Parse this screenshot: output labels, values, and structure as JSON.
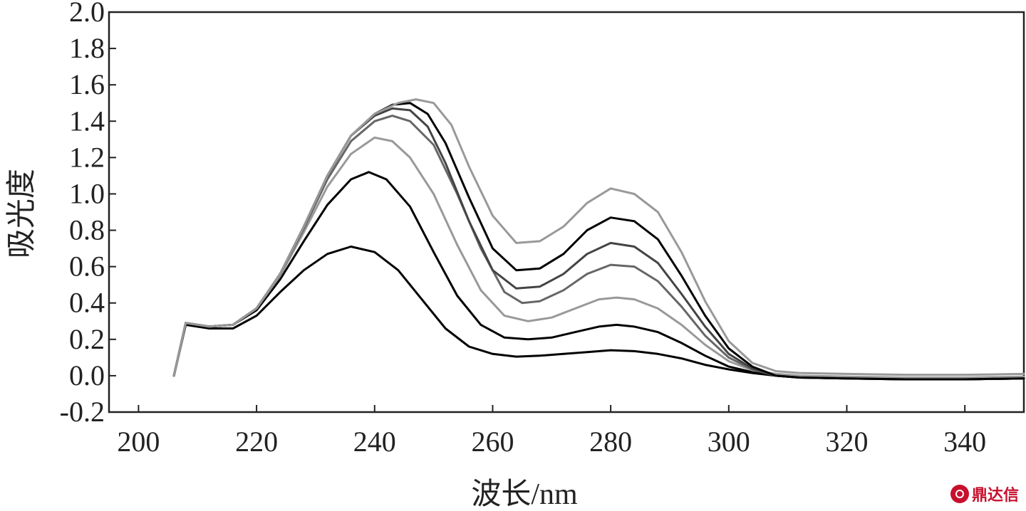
{
  "chart_data": {
    "type": "line",
    "xlabel": "波长/nm",
    "ylabel": "吸光度",
    "xlim": [
      195,
      350
    ],
    "ylim": [
      -0.2,
      2.0
    ],
    "xticks": [
      200,
      220,
      240,
      260,
      280,
      300,
      320,
      340
    ],
    "yticks": [
      -0.2,
      0.0,
      0.2,
      0.4,
      0.6,
      0.8,
      1.0,
      1.2,
      1.4,
      1.6,
      1.8,
      2.0
    ],
    "ytick_labels": [
      "-0.2",
      "0.0",
      "0.2",
      "0.4",
      "0.6",
      "0.8",
      "1.0",
      "1.2",
      "1.4",
      "1.6",
      "1.8",
      "2.0"
    ],
    "grid": false,
    "series": [
      {
        "color": "#000000",
        "points": [
          [
            206,
            0.0
          ],
          [
            208,
            0.28
          ],
          [
            212,
            0.26
          ],
          [
            216,
            0.26
          ],
          [
            220,
            0.33
          ],
          [
            224,
            0.46
          ],
          [
            228,
            0.58
          ],
          [
            232,
            0.67
          ],
          [
            236,
            0.71
          ],
          [
            240,
            0.68
          ],
          [
            244,
            0.58
          ],
          [
            248,
            0.42
          ],
          [
            252,
            0.26
          ],
          [
            256,
            0.16
          ],
          [
            260,
            0.12
          ],
          [
            264,
            0.105
          ],
          [
            268,
            0.11
          ],
          [
            272,
            0.12
          ],
          [
            276,
            0.13
          ],
          [
            280,
            0.14
          ],
          [
            284,
            0.135
          ],
          [
            288,
            0.12
          ],
          [
            292,
            0.095
          ],
          [
            296,
            0.06
          ],
          [
            300,
            0.035
          ],
          [
            304,
            0.015
          ],
          [
            308,
            0.0
          ],
          [
            312,
            -0.01
          ],
          [
            320,
            -0.01
          ],
          [
            330,
            -0.015
          ],
          [
            340,
            -0.015
          ],
          [
            350,
            -0.01
          ]
        ]
      },
      {
        "color": "#000000",
        "points": [
          [
            206,
            0.0
          ],
          [
            208,
            0.29
          ],
          [
            212,
            0.27
          ],
          [
            216,
            0.28
          ],
          [
            220,
            0.36
          ],
          [
            224,
            0.53
          ],
          [
            228,
            0.74
          ],
          [
            232,
            0.94
          ],
          [
            236,
            1.08
          ],
          [
            239,
            1.12
          ],
          [
            242,
            1.08
          ],
          [
            246,
            0.93
          ],
          [
            250,
            0.68
          ],
          [
            254,
            0.44
          ],
          [
            258,
            0.28
          ],
          [
            262,
            0.21
          ],
          [
            266,
            0.2
          ],
          [
            270,
            0.21
          ],
          [
            274,
            0.24
          ],
          [
            278,
            0.27
          ],
          [
            281,
            0.28
          ],
          [
            284,
            0.27
          ],
          [
            288,
            0.24
          ],
          [
            292,
            0.18
          ],
          [
            296,
            0.11
          ],
          [
            300,
            0.05
          ],
          [
            304,
            0.02
          ],
          [
            308,
            0.0
          ],
          [
            312,
            -0.01
          ],
          [
            320,
            -0.015
          ],
          [
            330,
            -0.02
          ],
          [
            340,
            -0.02
          ],
          [
            350,
            -0.015
          ]
        ]
      },
      {
        "color": "#999999",
        "points": [
          [
            206,
            0.0
          ],
          [
            208,
            0.29
          ],
          [
            212,
            0.27
          ],
          [
            216,
            0.28
          ],
          [
            220,
            0.37
          ],
          [
            224,
            0.55
          ],
          [
            228,
            0.79
          ],
          [
            232,
            1.04
          ],
          [
            236,
            1.22
          ],
          [
            240,
            1.31
          ],
          [
            243,
            1.29
          ],
          [
            246,
            1.2
          ],
          [
            250,
            1.0
          ],
          [
            254,
            0.72
          ],
          [
            258,
            0.47
          ],
          [
            262,
            0.33
          ],
          [
            266,
            0.3
          ],
          [
            270,
            0.32
          ],
          [
            274,
            0.37
          ],
          [
            278,
            0.42
          ],
          [
            281,
            0.43
          ],
          [
            284,
            0.42
          ],
          [
            288,
            0.37
          ],
          [
            292,
            0.28
          ],
          [
            296,
            0.17
          ],
          [
            300,
            0.08
          ],
          [
            304,
            0.03
          ],
          [
            308,
            0.01
          ],
          [
            312,
            0.0
          ],
          [
            320,
            -0.005
          ],
          [
            330,
            -0.01
          ],
          [
            340,
            -0.01
          ],
          [
            350,
            -0.005
          ]
        ]
      },
      {
        "color": "#666666",
        "points": [
          [
            206,
            0.0
          ],
          [
            208,
            0.29
          ],
          [
            212,
            0.27
          ],
          [
            216,
            0.28
          ],
          [
            220,
            0.37
          ],
          [
            224,
            0.56
          ],
          [
            228,
            0.81
          ],
          [
            232,
            1.08
          ],
          [
            236,
            1.29
          ],
          [
            240,
            1.4
          ],
          [
            243,
            1.43
          ],
          [
            246,
            1.4
          ],
          [
            250,
            1.27
          ],
          [
            254,
            1.0
          ],
          [
            258,
            0.7
          ],
          [
            262,
            0.46
          ],
          [
            265,
            0.4
          ],
          [
            268,
            0.41
          ],
          [
            272,
            0.47
          ],
          [
            276,
            0.56
          ],
          [
            280,
            0.61
          ],
          [
            284,
            0.6
          ],
          [
            288,
            0.52
          ],
          [
            292,
            0.38
          ],
          [
            296,
            0.22
          ],
          [
            300,
            0.1
          ],
          [
            304,
            0.035
          ],
          [
            308,
            0.0
          ],
          [
            312,
            -0.01
          ],
          [
            320,
            -0.015
          ],
          [
            330,
            -0.02
          ],
          [
            340,
            -0.02
          ],
          [
            350,
            -0.015
          ]
        ]
      },
      {
        "color": "#444444",
        "points": [
          [
            206,
            0.0
          ],
          [
            208,
            0.29
          ],
          [
            212,
            0.27
          ],
          [
            216,
            0.28
          ],
          [
            220,
            0.37
          ],
          [
            224,
            0.56
          ],
          [
            228,
            0.82
          ],
          [
            232,
            1.1
          ],
          [
            236,
            1.32
          ],
          [
            240,
            1.43
          ],
          [
            243,
            1.47
          ],
          [
            246,
            1.46
          ],
          [
            249,
            1.37
          ],
          [
            252,
            1.17
          ],
          [
            256,
            0.85
          ],
          [
            260,
            0.58
          ],
          [
            264,
            0.48
          ],
          [
            268,
            0.49
          ],
          [
            272,
            0.56
          ],
          [
            276,
            0.67
          ],
          [
            280,
            0.73
          ],
          [
            284,
            0.71
          ],
          [
            288,
            0.62
          ],
          [
            292,
            0.45
          ],
          [
            296,
            0.27
          ],
          [
            300,
            0.12
          ],
          [
            304,
            0.04
          ],
          [
            308,
            0.0
          ],
          [
            312,
            -0.01
          ],
          [
            320,
            -0.015
          ],
          [
            330,
            -0.02
          ],
          [
            340,
            -0.02
          ],
          [
            350,
            -0.015
          ]
        ]
      },
      {
        "color": "#000000",
        "points": [
          [
            206,
            0.0
          ],
          [
            208,
            0.29
          ],
          [
            212,
            0.27
          ],
          [
            216,
            0.28
          ],
          [
            220,
            0.37
          ],
          [
            224,
            0.56
          ],
          [
            228,
            0.82
          ],
          [
            232,
            1.1
          ],
          [
            236,
            1.32
          ],
          [
            240,
            1.44
          ],
          [
            243,
            1.49
          ],
          [
            246,
            1.5
          ],
          [
            249,
            1.44
          ],
          [
            252,
            1.28
          ],
          [
            256,
            0.98
          ],
          [
            260,
            0.7
          ],
          [
            264,
            0.58
          ],
          [
            268,
            0.59
          ],
          [
            272,
            0.67
          ],
          [
            276,
            0.8
          ],
          [
            280,
            0.87
          ],
          [
            284,
            0.85
          ],
          [
            288,
            0.75
          ],
          [
            292,
            0.55
          ],
          [
            296,
            0.33
          ],
          [
            300,
            0.15
          ],
          [
            304,
            0.05
          ],
          [
            308,
            0.0
          ],
          [
            312,
            -0.01
          ],
          [
            320,
            -0.015
          ],
          [
            330,
            -0.02
          ],
          [
            340,
            -0.02
          ],
          [
            350,
            -0.015
          ]
        ]
      },
      {
        "color": "#999999",
        "points": [
          [
            206,
            0.0
          ],
          [
            208,
            0.29
          ],
          [
            212,
            0.27
          ],
          [
            216,
            0.28
          ],
          [
            220,
            0.37
          ],
          [
            224,
            0.56
          ],
          [
            228,
            0.82
          ],
          [
            232,
            1.1
          ],
          [
            236,
            1.32
          ],
          [
            240,
            1.44
          ],
          [
            244,
            1.5
          ],
          [
            247,
            1.52
          ],
          [
            250,
            1.5
          ],
          [
            253,
            1.38
          ],
          [
            256,
            1.15
          ],
          [
            260,
            0.88
          ],
          [
            264,
            0.73
          ],
          [
            268,
            0.74
          ],
          [
            272,
            0.82
          ],
          [
            276,
            0.95
          ],
          [
            280,
            1.03
          ],
          [
            284,
            1.0
          ],
          [
            288,
            0.9
          ],
          [
            292,
            0.68
          ],
          [
            296,
            0.41
          ],
          [
            300,
            0.19
          ],
          [
            304,
            0.07
          ],
          [
            308,
            0.025
          ],
          [
            312,
            0.015
          ],
          [
            320,
            0.01
          ],
          [
            330,
            0.005
          ],
          [
            340,
            0.005
          ],
          [
            350,
            0.01
          ]
        ]
      }
    ]
  },
  "watermark": {
    "text": "鼎达信",
    "color": "#c8102e"
  }
}
